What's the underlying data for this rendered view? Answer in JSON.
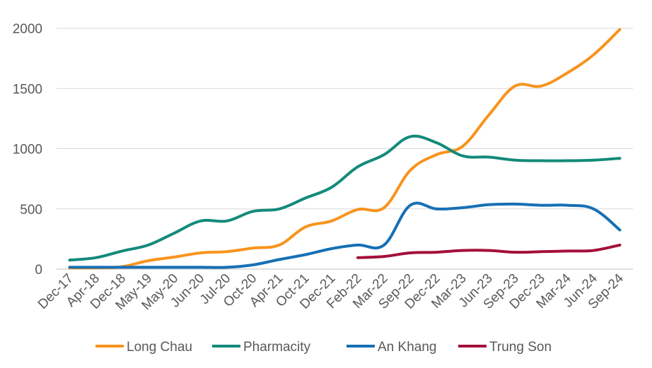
{
  "chart_data": {
    "type": "line",
    "title": "",
    "xlabel": "",
    "ylabel": "",
    "ylim": [
      0,
      2000
    ],
    "yticks": [
      0,
      500,
      1000,
      1500,
      2000
    ],
    "grid": true,
    "legend_position": "bottom",
    "categories": [
      "Dec-17",
      "Apr-18",
      "Dec-18",
      "May-19",
      "May-20",
      "Jun-20",
      "Jul-20",
      "Oct-20",
      "Apr-21",
      "Oct-21",
      "Dec-21",
      "Feb-22",
      "Mar-22",
      "Sep-22",
      "Dec-22",
      "Mar-23",
      "Jun-23",
      "Sep-23",
      "Dec-23",
      "Mar-24",
      "Jun-24",
      "Sep-24"
    ],
    "series": [
      {
        "name": "Long Chau",
        "color": "#F7941D",
        "values": [
          10,
          10,
          20,
          70,
          100,
          135,
          145,
          175,
          200,
          350,
          400,
          495,
          510,
          820,
          950,
          1020,
          1280,
          1520,
          1520,
          1630,
          1780,
          1990
        ]
      },
      {
        "name": "Pharmacity",
        "color": "#138A7A",
        "values": [
          75,
          95,
          150,
          200,
          300,
          400,
          400,
          480,
          500,
          590,
          680,
          850,
          950,
          1100,
          1050,
          940,
          930,
          905,
          900,
          900,
          905,
          920
        ]
      },
      {
        "name": "An Khang",
        "color": "#1670B5",
        "values": [
          15,
          15,
          15,
          15,
          15,
          15,
          15,
          35,
          80,
          120,
          170,
          200,
          200,
          530,
          500,
          510,
          535,
          540,
          530,
          530,
          500,
          325
        ]
      },
      {
        "name": "Trung Son",
        "color": "#A50F3B",
        "values": [
          null,
          null,
          null,
          null,
          null,
          null,
          null,
          null,
          null,
          null,
          null,
          95,
          105,
          135,
          140,
          155,
          155,
          140,
          145,
          150,
          155,
          200
        ]
      }
    ]
  }
}
